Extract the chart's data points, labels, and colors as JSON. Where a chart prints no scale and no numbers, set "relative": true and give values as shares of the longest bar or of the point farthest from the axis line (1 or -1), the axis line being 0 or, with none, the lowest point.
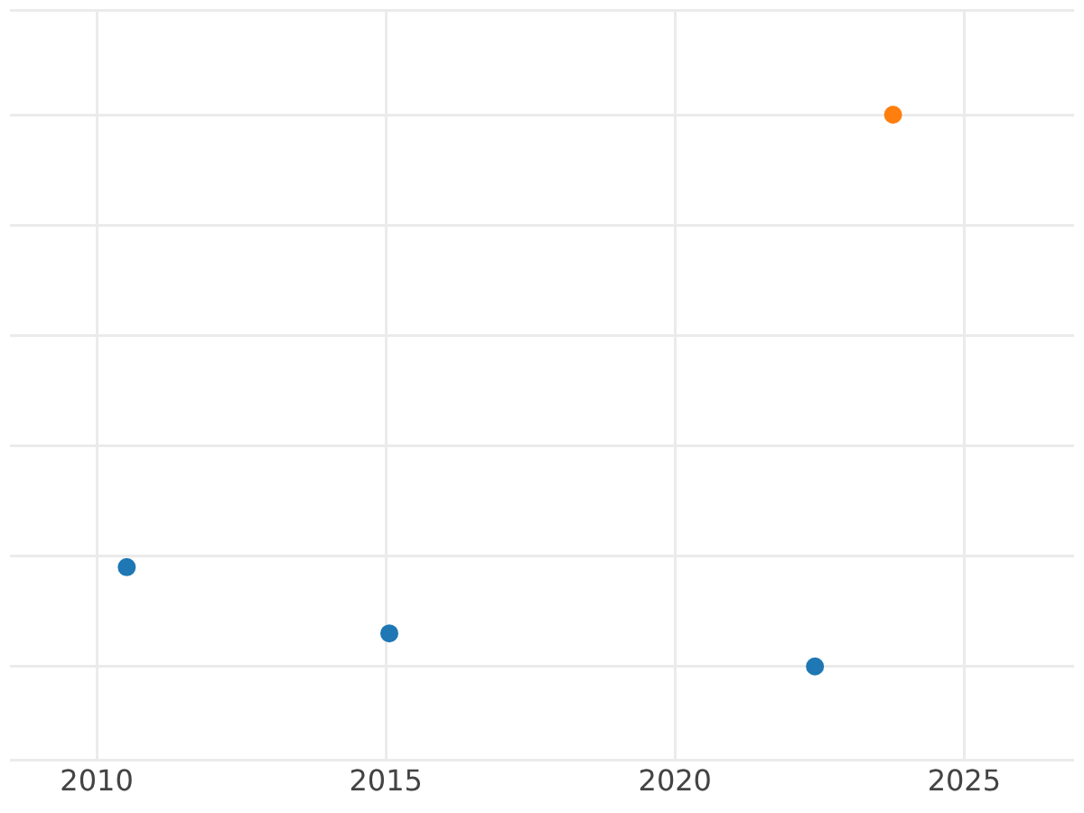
{
  "chart_data": {
    "type": "scatter",
    "relative": true,
    "grid": true,
    "legend": false,
    "marker": "circle",
    "tick_labels": "x",
    "xlim": [
      2008.5,
      2026.9
    ],
    "xticks": [
      2010,
      2015,
      2020,
      2025
    ],
    "series": [
      {
        "color": "#1f77b4",
        "x": [
          2010.52,
          2015.06,
          2022.42
        ],
        "values": [
          0.18,
          0.06,
          0
        ]
      },
      {
        "color": "#ff7f0e",
        "x": [
          2023.77
        ],
        "values": [
          1
        ]
      }
    ]
  }
}
